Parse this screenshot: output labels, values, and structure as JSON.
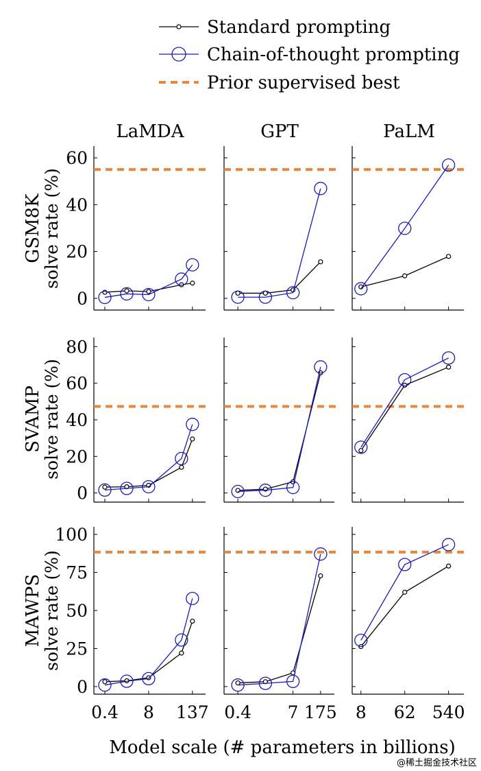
{
  "legend": {
    "standard": "Standard prompting",
    "cot": "Chain-of-thought prompting",
    "prior": "Prior supervised best"
  },
  "colors": {
    "standard": "#000000",
    "cot": "#1a1ab8",
    "prior": "#e8873a",
    "axis": "#000000",
    "watermark": "#b9b9b9"
  },
  "xlabel": "Model scale (# parameters in billions)",
  "watermark": "@稀土掘金技术社区",
  "chart_data": {
    "type": "line",
    "columns": [
      "LaMDA",
      "GPT",
      "PaLM"
    ],
    "rows": [
      {
        "name": "GSM8K",
        "ylabel": "solve rate (%)",
        "ylim": [
          -5,
          65
        ],
        "ticks": [
          0,
          20,
          40,
          60
        ]
      },
      {
        "name": "SVAMP",
        "ylabel": "solve rate (%)",
        "ylim": [
          -5,
          85
        ],
        "ticks": [
          0,
          20,
          40,
          60,
          80
        ]
      },
      {
        "name": "MAWPS",
        "ylabel": "solve rate (%)",
        "ylim": [
          -5,
          105
        ],
        "ticks": [
          0,
          25,
          50,
          75,
          100
        ]
      }
    ],
    "x_ticks": [
      {
        "labels": [
          "0.4",
          "8",
          "137"
        ],
        "x": [
          0,
          2,
          4
        ]
      },
      {
        "labels": [
          "0.4",
          "7",
          "175"
        ],
        "x": [
          0,
          2,
          3
        ]
      },
      {
        "labels": [
          "8",
          "62",
          "540"
        ],
        "x": [
          0,
          1,
          2
        ]
      }
    ],
    "x_ranges": [
      [
        -0.5,
        4.6
      ],
      [
        -0.5,
        3.5
      ],
      [
        -0.2,
        2.35
      ]
    ],
    "x_positions": [
      [
        0,
        1,
        2,
        3.5,
        4
      ],
      [
        0,
        1,
        2,
        3
      ],
      [
        0,
        1,
        2
      ]
    ],
    "panels": [
      [
        {
          "standard": [
            2.6,
            3.2,
            2.9,
            5.8,
            6.5
          ],
          "cot": [
            0.4,
            1.9,
            1.6,
            8.2,
            14.3
          ],
          "prior": 55
        },
        {
          "standard": [
            3.2,
            3.4,
            4.2,
            14.0,
            29.5
          ],
          "cot": [
            1.6,
            2.5,
            3.4,
            18.8,
            37.5
          ],
          "prior": 47.3
        },
        {
          "standard": [
            3.2,
            3.8,
            5.8,
            22.0,
            43.0
          ],
          "cot": [
            1.0,
            3.5,
            5.2,
            30.6,
            57.9
          ],
          "prior": 88.4
        }
      ],
      [
        {
          "standard": [
            2.2,
            2.2,
            3.6,
            15.6
          ],
          "cot": [
            0.5,
            0.5,
            2.4,
            46.9
          ],
          "prior": 55
        },
        {
          "standard": [
            1.4,
            2.1,
            6.1,
            65.7
          ],
          "cot": [
            0.8,
            1.5,
            3.0,
            68.9
          ],
          "prior": 47.3
        },
        {
          "standard": [
            2.4,
            3.2,
            9.0,
            72.8
          ],
          "cot": [
            1.0,
            2.1,
            3.4,
            87.1
          ],
          "prior": 88.4
        }
      ],
      [
        {
          "standard": [
            4.9,
            9.6,
            17.9
          ],
          "cot": [
            4.1,
            29.9,
            56.9
          ],
          "prior": 55
        },
        {
          "standard": [
            23.2,
            58.9,
            68.8
          ],
          "cot": [
            25.0,
            61.9,
            73.8
          ],
          "prior": 47.3
        },
        {
          "standard": [
            26.3,
            62.0,
            79.2
          ],
          "cot": [
            30.4,
            80.2,
            93.3
          ],
          "prior": 88.4
        }
      ]
    ]
  }
}
